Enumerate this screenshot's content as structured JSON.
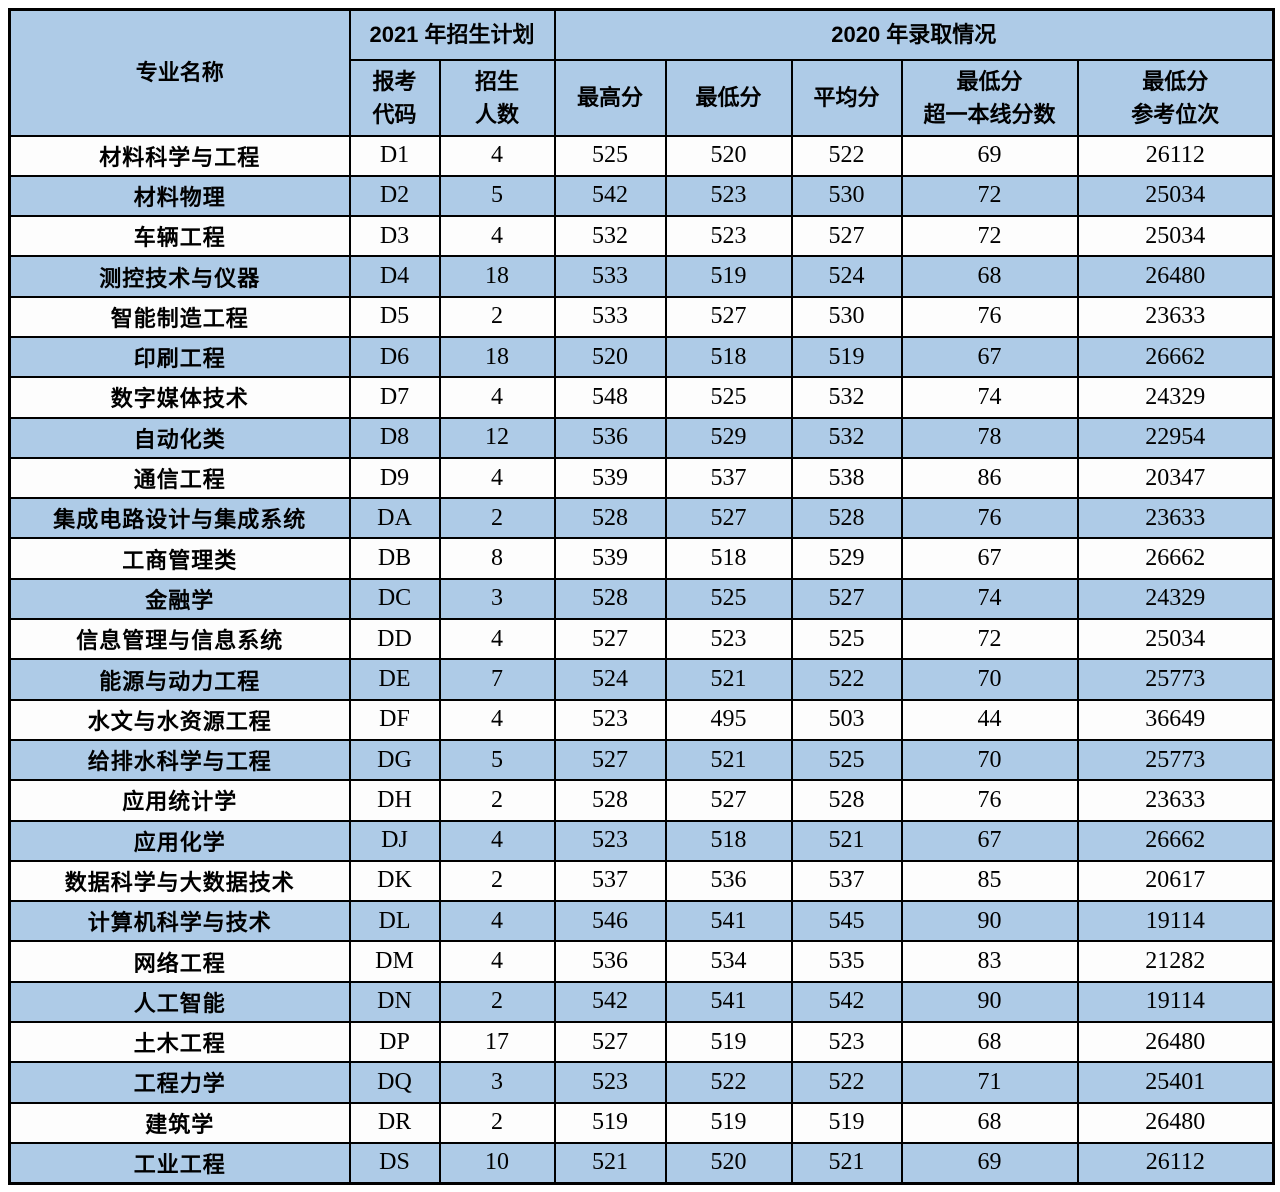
{
  "chart_data": {
    "type": "table",
    "header": {
      "major_label": "专业名称",
      "group_2021_label": "2021 年招生计划",
      "group_2020_label": "2020 年录取情况",
      "sub_columns": [
        "报考\n代码",
        "招生\n人数",
        "最高分",
        "最低分",
        "平均分",
        "最低分\n超一本线分数",
        "最低分\n参考位次"
      ]
    },
    "columns": [
      "专业名称",
      "报考代码",
      "招生人数",
      "最高分",
      "最低分",
      "平均分",
      "最低分超一本线分数",
      "最低分参考位次"
    ],
    "rows": [
      [
        "材料科学与工程",
        "D1",
        "4",
        "525",
        "520",
        "522",
        "69",
        "26112"
      ],
      [
        "材料物理",
        "D2",
        "5",
        "542",
        "523",
        "530",
        "72",
        "25034"
      ],
      [
        "车辆工程",
        "D3",
        "4",
        "532",
        "523",
        "527",
        "72",
        "25034"
      ],
      [
        "测控技术与仪器",
        "D4",
        "18",
        "533",
        "519",
        "524",
        "68",
        "26480"
      ],
      [
        "智能制造工程",
        "D5",
        "2",
        "533",
        "527",
        "530",
        "76",
        "23633"
      ],
      [
        "印刷工程",
        "D6",
        "18",
        "520",
        "518",
        "519",
        "67",
        "26662"
      ],
      [
        "数字媒体技术",
        "D7",
        "4",
        "548",
        "525",
        "532",
        "74",
        "24329"
      ],
      [
        "自动化类",
        "D8",
        "12",
        "536",
        "529",
        "532",
        "78",
        "22954"
      ],
      [
        "通信工程",
        "D9",
        "4",
        "539",
        "537",
        "538",
        "86",
        "20347"
      ],
      [
        "集成电路设计与集成系统",
        "DA",
        "2",
        "528",
        "527",
        "528",
        "76",
        "23633"
      ],
      [
        "工商管理类",
        "DB",
        "8",
        "539",
        "518",
        "529",
        "67",
        "26662"
      ],
      [
        "金融学",
        "DC",
        "3",
        "528",
        "525",
        "527",
        "74",
        "24329"
      ],
      [
        "信息管理与信息系统",
        "DD",
        "4",
        "527",
        "523",
        "525",
        "72",
        "25034"
      ],
      [
        "能源与动力工程",
        "DE",
        "7",
        "524",
        "521",
        "522",
        "70",
        "25773"
      ],
      [
        "水文与水资源工程",
        "DF",
        "4",
        "523",
        "495",
        "503",
        "44",
        "36649"
      ],
      [
        "给排水科学与工程",
        "DG",
        "5",
        "527",
        "521",
        "525",
        "70",
        "25773"
      ],
      [
        "应用统计学",
        "DH",
        "2",
        "528",
        "527",
        "528",
        "76",
        "23633"
      ],
      [
        "应用化学",
        "DJ",
        "4",
        "523",
        "518",
        "521",
        "67",
        "26662"
      ],
      [
        "数据科学与大数据技术",
        "DK",
        "2",
        "537",
        "536",
        "537",
        "85",
        "20617"
      ],
      [
        "计算机科学与技术",
        "DL",
        "4",
        "546",
        "541",
        "545",
        "90",
        "19114"
      ],
      [
        "网络工程",
        "DM",
        "4",
        "536",
        "534",
        "535",
        "83",
        "21282"
      ],
      [
        "人工智能",
        "DN",
        "2",
        "542",
        "541",
        "542",
        "90",
        "19114"
      ],
      [
        "土木工程",
        "DP",
        "17",
        "527",
        "519",
        "523",
        "68",
        "26480"
      ],
      [
        "工程力学",
        "DQ",
        "3",
        "523",
        "522",
        "522",
        "71",
        "25401"
      ],
      [
        "建筑学",
        "DR",
        "2",
        "519",
        "519",
        "519",
        "68",
        "26480"
      ],
      [
        "工业工程",
        "DS",
        "10",
        "521",
        "520",
        "521",
        "69",
        "26112"
      ]
    ]
  },
  "styles": {
    "muted": {
      "row_index": 14,
      "col_indices": [
        3,
        4,
        5
      ]
    },
    "zebra_start": "white"
  },
  "colors": {
    "row_blue": "#aecbe7",
    "row_white": "#fdfdfd",
    "border": "#000000",
    "text": "#000000",
    "muted_text": "#6e6e6e"
  }
}
